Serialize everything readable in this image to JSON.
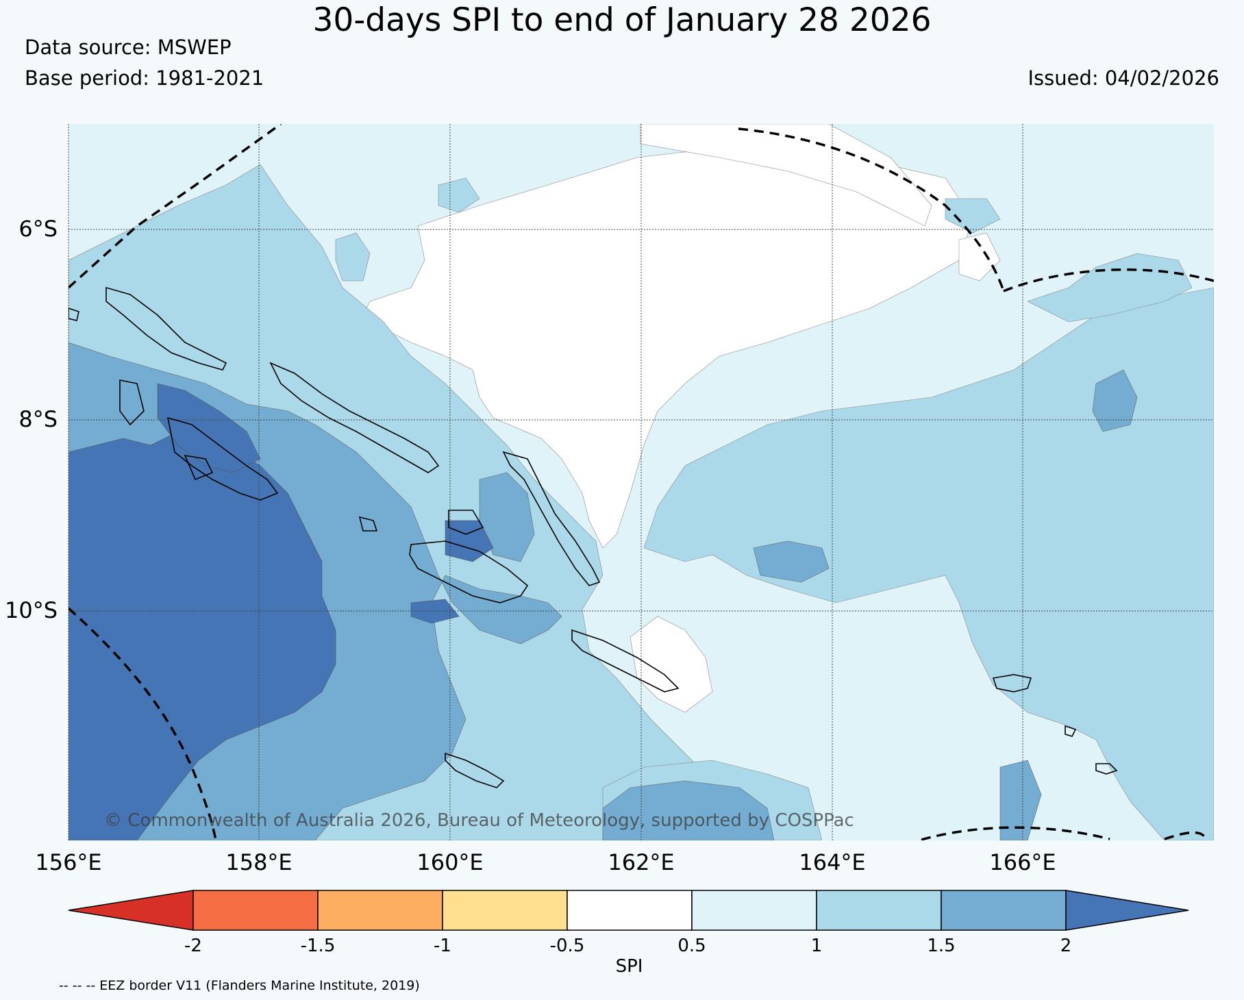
{
  "header": {
    "title": "30-days SPI to end of January 28 2026",
    "data_source": "Data source: MSWEP",
    "base_period": "Base period: 1981-2021",
    "issued": "Issued: 04/02/2026"
  },
  "map": {
    "lon_labels": [
      "156°E",
      "158°E",
      "160°E",
      "162°E",
      "164°E",
      "166°E"
    ],
    "lat_labels": [
      "6°S",
      "8°S",
      "10°S"
    ],
    "copyright": "© Commonwealth of Australia 2026, Bureau of Meteorology, supported by COSPPac",
    "colors": {
      "spi_lt_m2": "#d73027",
      "spi_m2_m15": "#f46d43",
      "spi_m15_m1": "#fdae61",
      "spi_m1_m05": "#fee090",
      "spi_m05_05": "#ffffff",
      "spi_05_1": "#e0f3f8",
      "spi_1_15": "#abd9e9",
      "spi_15_2": "#74add1",
      "spi_gt_2": "#4575b4"
    }
  },
  "colorbar": {
    "label": "SPI",
    "ticks": [
      "-2",
      "-1.5",
      "-1",
      "-0.5",
      "0.5",
      "1",
      "1.5",
      "2"
    ],
    "colors": [
      "#d73027",
      "#f46d43",
      "#fdae61",
      "#fee090",
      "#ffffff",
      "#e0f3f8",
      "#abd9e9",
      "#74add1",
      "#4575b4"
    ]
  },
  "footer": {
    "eez_note": "-- -- -- EEZ border V11 (Flanders Marine Institute, 2019)"
  }
}
